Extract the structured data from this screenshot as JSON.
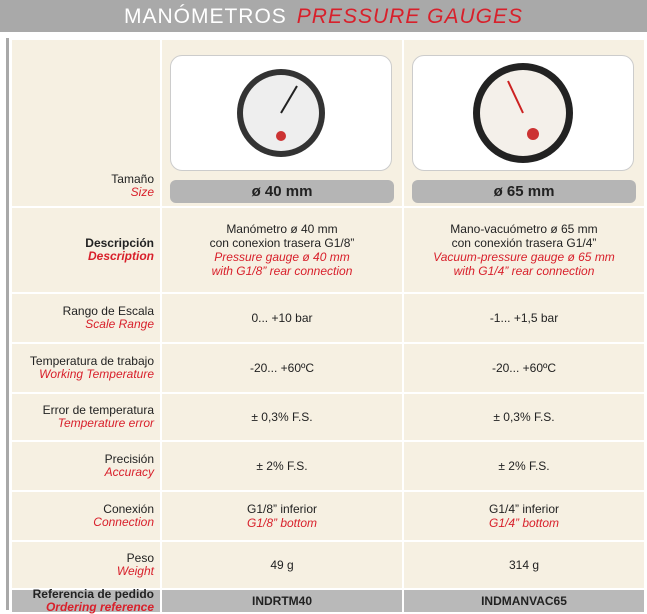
{
  "header": {
    "title_es": "MANÓMETROS",
    "title_en": "PRESSURE GAUGES"
  },
  "size_row": {
    "label": "Tamaño",
    "label_en": "Size",
    "cells": [
      "ø 40 mm",
      "ø 65 mm"
    ]
  },
  "rows": [
    {
      "label": "Descripción",
      "label_en": "Description",
      "emphasis": true,
      "height": 86,
      "cells": [
        {
          "es": [
            "Manómetro ø 40 mm",
            "con conexion trasera G1/8”"
          ],
          "en": [
            "Pressure gauge ø 40 mm",
            "with G1/8” rear connection"
          ]
        },
        {
          "es": [
            "Mano-vacuómetro ø 65 mm",
            "con conexión trasera G1/4”"
          ],
          "en": [
            "Vacuum-pressure gauge ø 65 mm",
            "with G1/4” rear connection"
          ]
        }
      ]
    },
    {
      "label": "Rango de Escala",
      "label_en": "Scale Range",
      "height": 50,
      "cells": [
        {
          "es": [
            "0... +10 bar"
          ]
        },
        {
          "es": [
            "-1... +1,5 bar"
          ]
        }
      ]
    },
    {
      "label": "Temperatura de trabajo",
      "label_en": "Working Temperature",
      "height": 50,
      "cells": [
        {
          "es": [
            "-20... +60ºC"
          ]
        },
        {
          "es": [
            "-20... +60ºC"
          ]
        }
      ]
    },
    {
      "label": "Error de temperatura",
      "label_en": "Temperature error",
      "height": 48,
      "cells": [
        {
          "es": [
            "± 0,3% F.S."
          ]
        },
        {
          "es": [
            "± 0,3% F.S."
          ]
        }
      ]
    },
    {
      "label": "Precisión",
      "label_en": "Accuracy",
      "height": 50,
      "cells": [
        {
          "es": [
            "± 2% F.S."
          ]
        },
        {
          "es": [
            "± 2% F.S."
          ]
        }
      ]
    },
    {
      "label": "Conexión",
      "label_en": "Connection",
      "height": 50,
      "cells": [
        {
          "es": [
            "G1/8” inferior"
          ],
          "en": [
            "G1/8” bottom"
          ]
        },
        {
          "es": [
            "G1/4” inferior"
          ],
          "en": [
            "G1/4” bottom"
          ]
        }
      ]
    },
    {
      "label": "Peso",
      "label_en": "Weight",
      "height": 48,
      "cells": [
        {
          "es": [
            "49 g"
          ]
        },
        {
          "es": [
            "314 g"
          ]
        }
      ]
    },
    {
      "label": "Referencia de pedido",
      "label_en": "Ordering reference",
      "emphasis": true,
      "reference": true,
      "height": 24,
      "cells": [
        {
          "es": [
            "INDRTM40"
          ]
        },
        {
          "es": [
            "INDMANVAC65"
          ]
        }
      ]
    }
  ]
}
